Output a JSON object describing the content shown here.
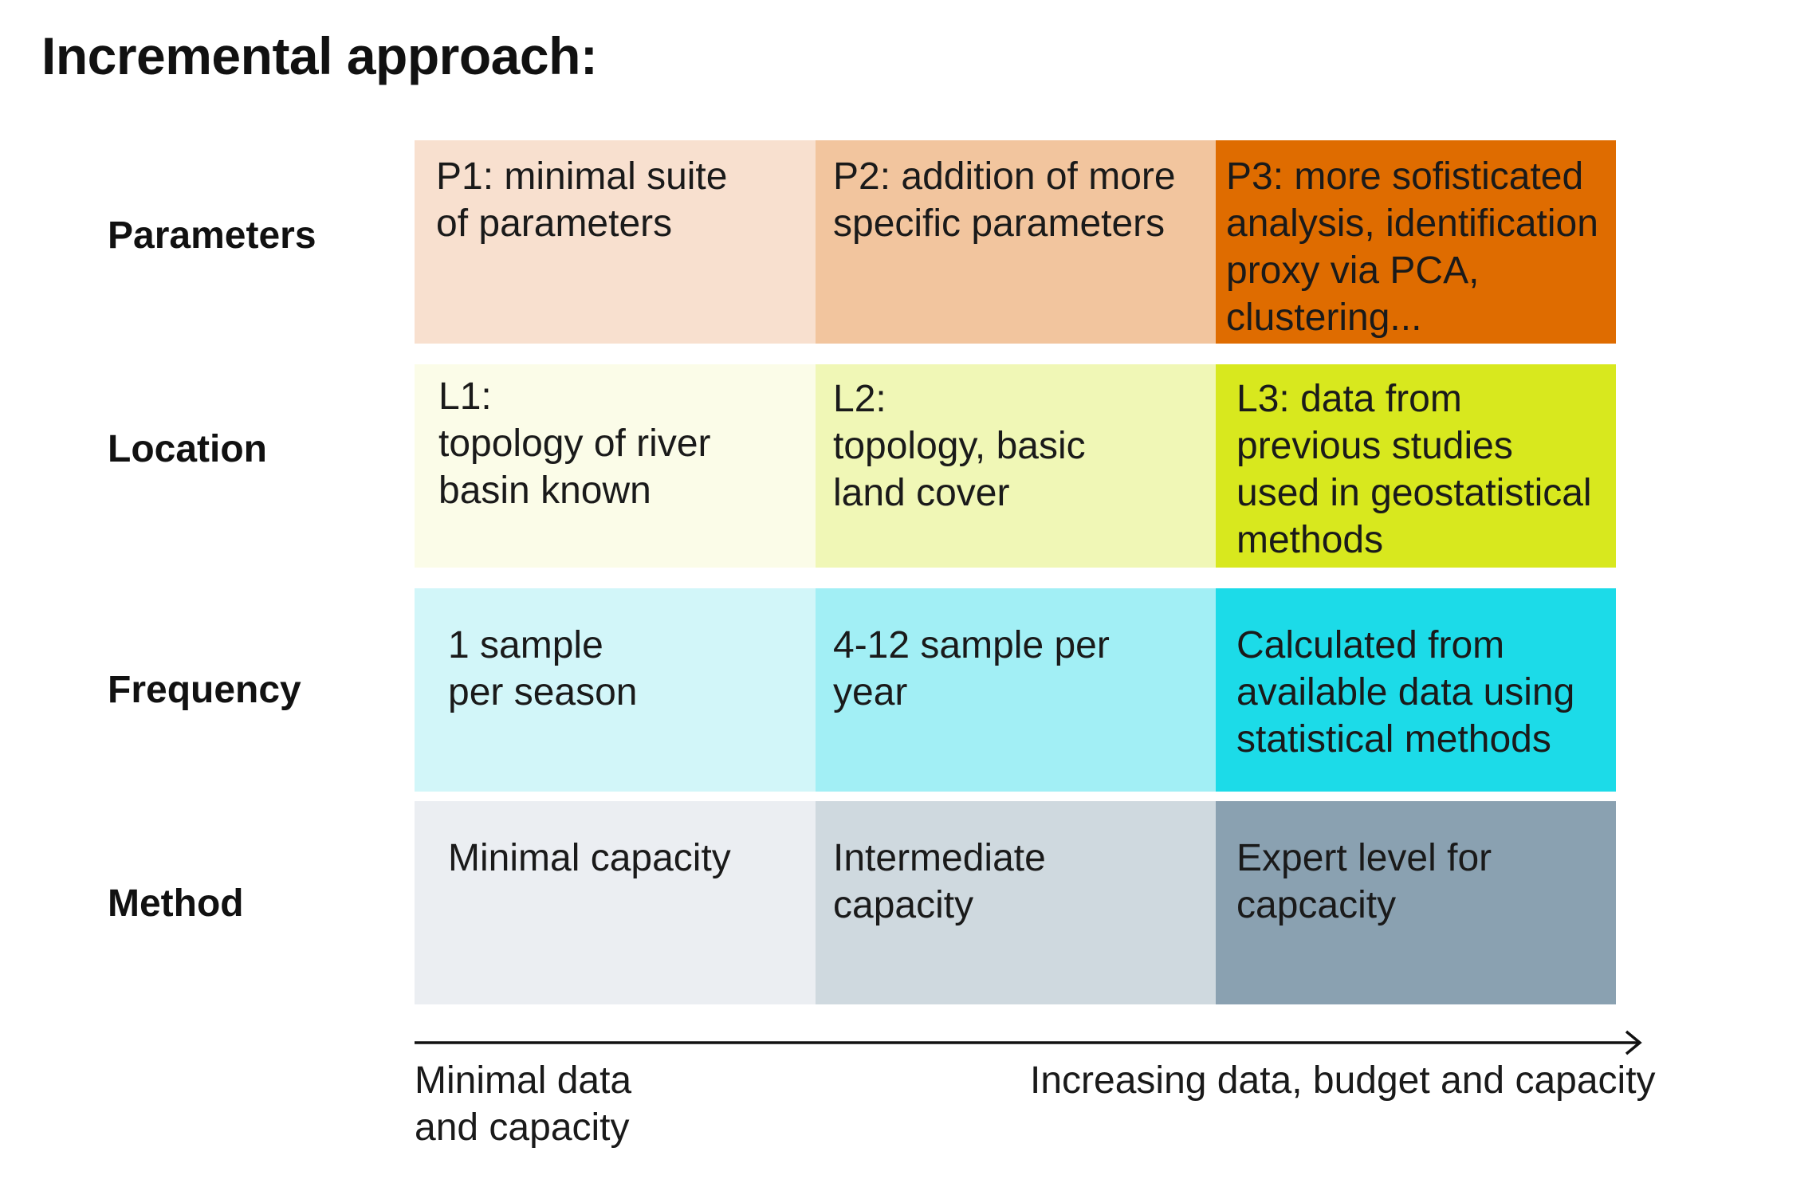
{
  "title": "Incremental approach:",
  "rows": [
    {
      "label": "Parameters",
      "cells": [
        {
          "text": "P1: minimal suite\nof parameters",
          "color": "#f8e0cf"
        },
        {
          "text": "P2: addition of more\nspecific parameters",
          "color": "#f2c59e"
        },
        {
          "text": "P3: more sofisticated\nanalysis, identification\nproxy via PCA,\nclustering...",
          "color": "#df6c00"
        }
      ]
    },
    {
      "label": "Location",
      "cells": [
        {
          "text": "L1:\ntopology of river\nbasin known",
          "color": "#fbfce8"
        },
        {
          "text": "L2:\ntopology, basic\nland cover",
          "color": "#f0f7b6"
        },
        {
          "text": "L3: data from\nprevious studies\nused in geostatistical\nmethods",
          "color": "#d8e81e"
        }
      ]
    },
    {
      "label": "Frequency",
      "cells": [
        {
          "text": "1 sample\nper season",
          "color": "#d2f6f9"
        },
        {
          "text": "4-12 sample per\nyear",
          "color": "#a2eff5"
        },
        {
          "text": "Calculated from\navailable data using\nstatistical methods",
          "color": "#1cdbe8"
        }
      ]
    },
    {
      "label": "Method",
      "cells": [
        {
          "text": "Minimal capacity",
          "color": "#ebeef2"
        },
        {
          "text": "Intermediate\ncapacity",
          "color": "#cfd9df"
        },
        {
          "text": "Expert level for\ncapcacity",
          "color": "#8aa1b1"
        }
      ]
    }
  ],
  "axis": {
    "start_label": "Minimal data\nand capacity",
    "end_label": "Increasing data, budget and capacity",
    "arrow_color": "#111111"
  }
}
